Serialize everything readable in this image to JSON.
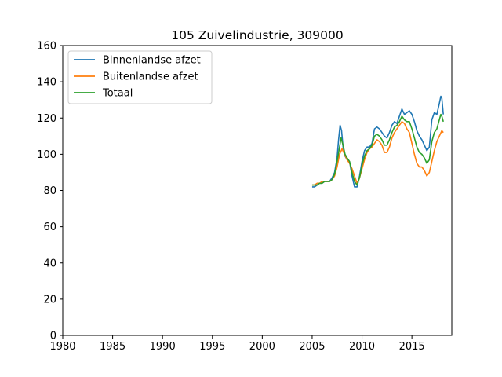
{
  "chart_data": {
    "type": "line",
    "title": "105 Zuivelindustrie, 309000",
    "xlabel": "",
    "ylabel": "",
    "xlim": [
      1980,
      2019
    ],
    "ylim": [
      0,
      160
    ],
    "x_ticks": [
      1980,
      1985,
      1990,
      1995,
      2000,
      2005,
      2010,
      2015
    ],
    "y_ticks": [
      0,
      20,
      40,
      60,
      80,
      100,
      120,
      140,
      160
    ],
    "grid": false,
    "legend_position": "upper-left",
    "series": [
      {
        "name": "Binnenlandse afzet",
        "color": "#1f77b4",
        "points": [
          [
            2005.0,
            82
          ],
          [
            2005.25,
            82
          ],
          [
            2005.5,
            83
          ],
          [
            2005.75,
            84
          ],
          [
            2006.0,
            84
          ],
          [
            2006.25,
            85
          ],
          [
            2006.5,
            85
          ],
          [
            2006.75,
            85
          ],
          [
            2007.0,
            87
          ],
          [
            2007.25,
            90
          ],
          [
            2007.5,
            98
          ],
          [
            2007.65,
            108
          ],
          [
            2007.8,
            116
          ],
          [
            2007.95,
            113
          ],
          [
            2008.1,
            104
          ],
          [
            2008.3,
            99
          ],
          [
            2008.5,
            97
          ],
          [
            2008.75,
            96
          ],
          [
            2009.0,
            88
          ],
          [
            2009.25,
            82
          ],
          [
            2009.5,
            82
          ],
          [
            2009.75,
            88
          ],
          [
            2010.0,
            96
          ],
          [
            2010.25,
            102
          ],
          [
            2010.5,
            104
          ],
          [
            2010.75,
            104
          ],
          [
            2011.0,
            106
          ],
          [
            2011.25,
            114
          ],
          [
            2011.5,
            115
          ],
          [
            2011.75,
            114
          ],
          [
            2012.0,
            112
          ],
          [
            2012.25,
            110
          ],
          [
            2012.5,
            109
          ],
          [
            2012.75,
            112
          ],
          [
            2013.0,
            116
          ],
          [
            2013.25,
            118
          ],
          [
            2013.5,
            117
          ],
          [
            2013.75,
            121
          ],
          [
            2014.0,
            125
          ],
          [
            2014.25,
            122
          ],
          [
            2014.5,
            123
          ],
          [
            2014.75,
            124
          ],
          [
            2015.0,
            122
          ],
          [
            2015.25,
            118
          ],
          [
            2015.5,
            113
          ],
          [
            2015.75,
            110
          ],
          [
            2016.0,
            108
          ],
          [
            2016.25,
            105
          ],
          [
            2016.5,
            102
          ],
          [
            2016.75,
            104
          ],
          [
            2017.0,
            119
          ],
          [
            2017.25,
            123
          ],
          [
            2017.5,
            122
          ],
          [
            2017.75,
            128
          ],
          [
            2017.9,
            132
          ],
          [
            2018.0,
            131
          ],
          [
            2018.15,
            122
          ]
        ]
      },
      {
        "name": "Buitenlandse afzet",
        "color": "#ff7f0e",
        "points": [
          [
            2005.0,
            83
          ],
          [
            2005.25,
            83
          ],
          [
            2005.5,
            84
          ],
          [
            2005.75,
            84
          ],
          [
            2006.0,
            85
          ],
          [
            2006.25,
            85
          ],
          [
            2006.5,
            85
          ],
          [
            2006.75,
            85
          ],
          [
            2007.0,
            86
          ],
          [
            2007.25,
            88
          ],
          [
            2007.5,
            93
          ],
          [
            2007.75,
            100
          ],
          [
            2008.0,
            103
          ],
          [
            2008.25,
            100
          ],
          [
            2008.5,
            97
          ],
          [
            2008.75,
            95
          ],
          [
            2009.0,
            92
          ],
          [
            2009.25,
            88
          ],
          [
            2009.5,
            84
          ],
          [
            2009.75,
            87
          ],
          [
            2010.0,
            92
          ],
          [
            2010.25,
            97
          ],
          [
            2010.5,
            101
          ],
          [
            2010.75,
            103
          ],
          [
            2011.0,
            104
          ],
          [
            2011.25,
            106
          ],
          [
            2011.5,
            108
          ],
          [
            2011.75,
            107
          ],
          [
            2012.0,
            105
          ],
          [
            2012.25,
            101
          ],
          [
            2012.5,
            101
          ],
          [
            2012.75,
            104
          ],
          [
            2013.0,
            109
          ],
          [
            2013.25,
            112
          ],
          [
            2013.5,
            114
          ],
          [
            2013.75,
            116
          ],
          [
            2014.0,
            118
          ],
          [
            2014.25,
            117
          ],
          [
            2014.5,
            114
          ],
          [
            2014.75,
            112
          ],
          [
            2015.0,
            106
          ],
          [
            2015.25,
            100
          ],
          [
            2015.5,
            95
          ],
          [
            2015.75,
            93
          ],
          [
            2016.0,
            93
          ],
          [
            2016.25,
            91
          ],
          [
            2016.5,
            88
          ],
          [
            2016.75,
            90
          ],
          [
            2017.0,
            96
          ],
          [
            2017.25,
            102
          ],
          [
            2017.5,
            107
          ],
          [
            2017.75,
            110
          ],
          [
            2018.0,
            113
          ],
          [
            2018.15,
            112
          ]
        ]
      },
      {
        "name": "Totaal",
        "color": "#2ca02c",
        "points": [
          [
            2005.0,
            83
          ],
          [
            2005.25,
            83
          ],
          [
            2005.5,
            83
          ],
          [
            2005.75,
            84
          ],
          [
            2006.0,
            84
          ],
          [
            2006.25,
            85
          ],
          [
            2006.5,
            85
          ],
          [
            2006.75,
            85
          ],
          [
            2007.0,
            86
          ],
          [
            2007.25,
            89
          ],
          [
            2007.5,
            96
          ],
          [
            2007.75,
            104
          ],
          [
            2007.9,
            109
          ],
          [
            2008.1,
            105
          ],
          [
            2008.3,
            100
          ],
          [
            2008.5,
            98
          ],
          [
            2008.75,
            96
          ],
          [
            2009.0,
            90
          ],
          [
            2009.25,
            85
          ],
          [
            2009.5,
            83
          ],
          [
            2009.75,
            87
          ],
          [
            2010.0,
            94
          ],
          [
            2010.25,
            99
          ],
          [
            2010.5,
            102
          ],
          [
            2010.75,
            103
          ],
          [
            2011.0,
            105
          ],
          [
            2011.25,
            110
          ],
          [
            2011.5,
            111
          ],
          [
            2011.75,
            110
          ],
          [
            2012.0,
            108
          ],
          [
            2012.25,
            105
          ],
          [
            2012.5,
            105
          ],
          [
            2012.75,
            108
          ],
          [
            2013.0,
            112
          ],
          [
            2013.25,
            115
          ],
          [
            2013.5,
            116
          ],
          [
            2013.75,
            118
          ],
          [
            2014.0,
            121
          ],
          [
            2014.25,
            119
          ],
          [
            2014.5,
            118
          ],
          [
            2014.75,
            118
          ],
          [
            2015.0,
            114
          ],
          [
            2015.25,
            109
          ],
          [
            2015.5,
            104
          ],
          [
            2015.75,
            101
          ],
          [
            2016.0,
            100
          ],
          [
            2016.25,
            98
          ],
          [
            2016.5,
            95
          ],
          [
            2016.75,
            97
          ],
          [
            2017.0,
            107
          ],
          [
            2017.25,
            112
          ],
          [
            2017.5,
            114
          ],
          [
            2017.75,
            119
          ],
          [
            2017.9,
            122
          ],
          [
            2018.0,
            121
          ],
          [
            2018.15,
            118
          ]
        ]
      }
    ]
  }
}
